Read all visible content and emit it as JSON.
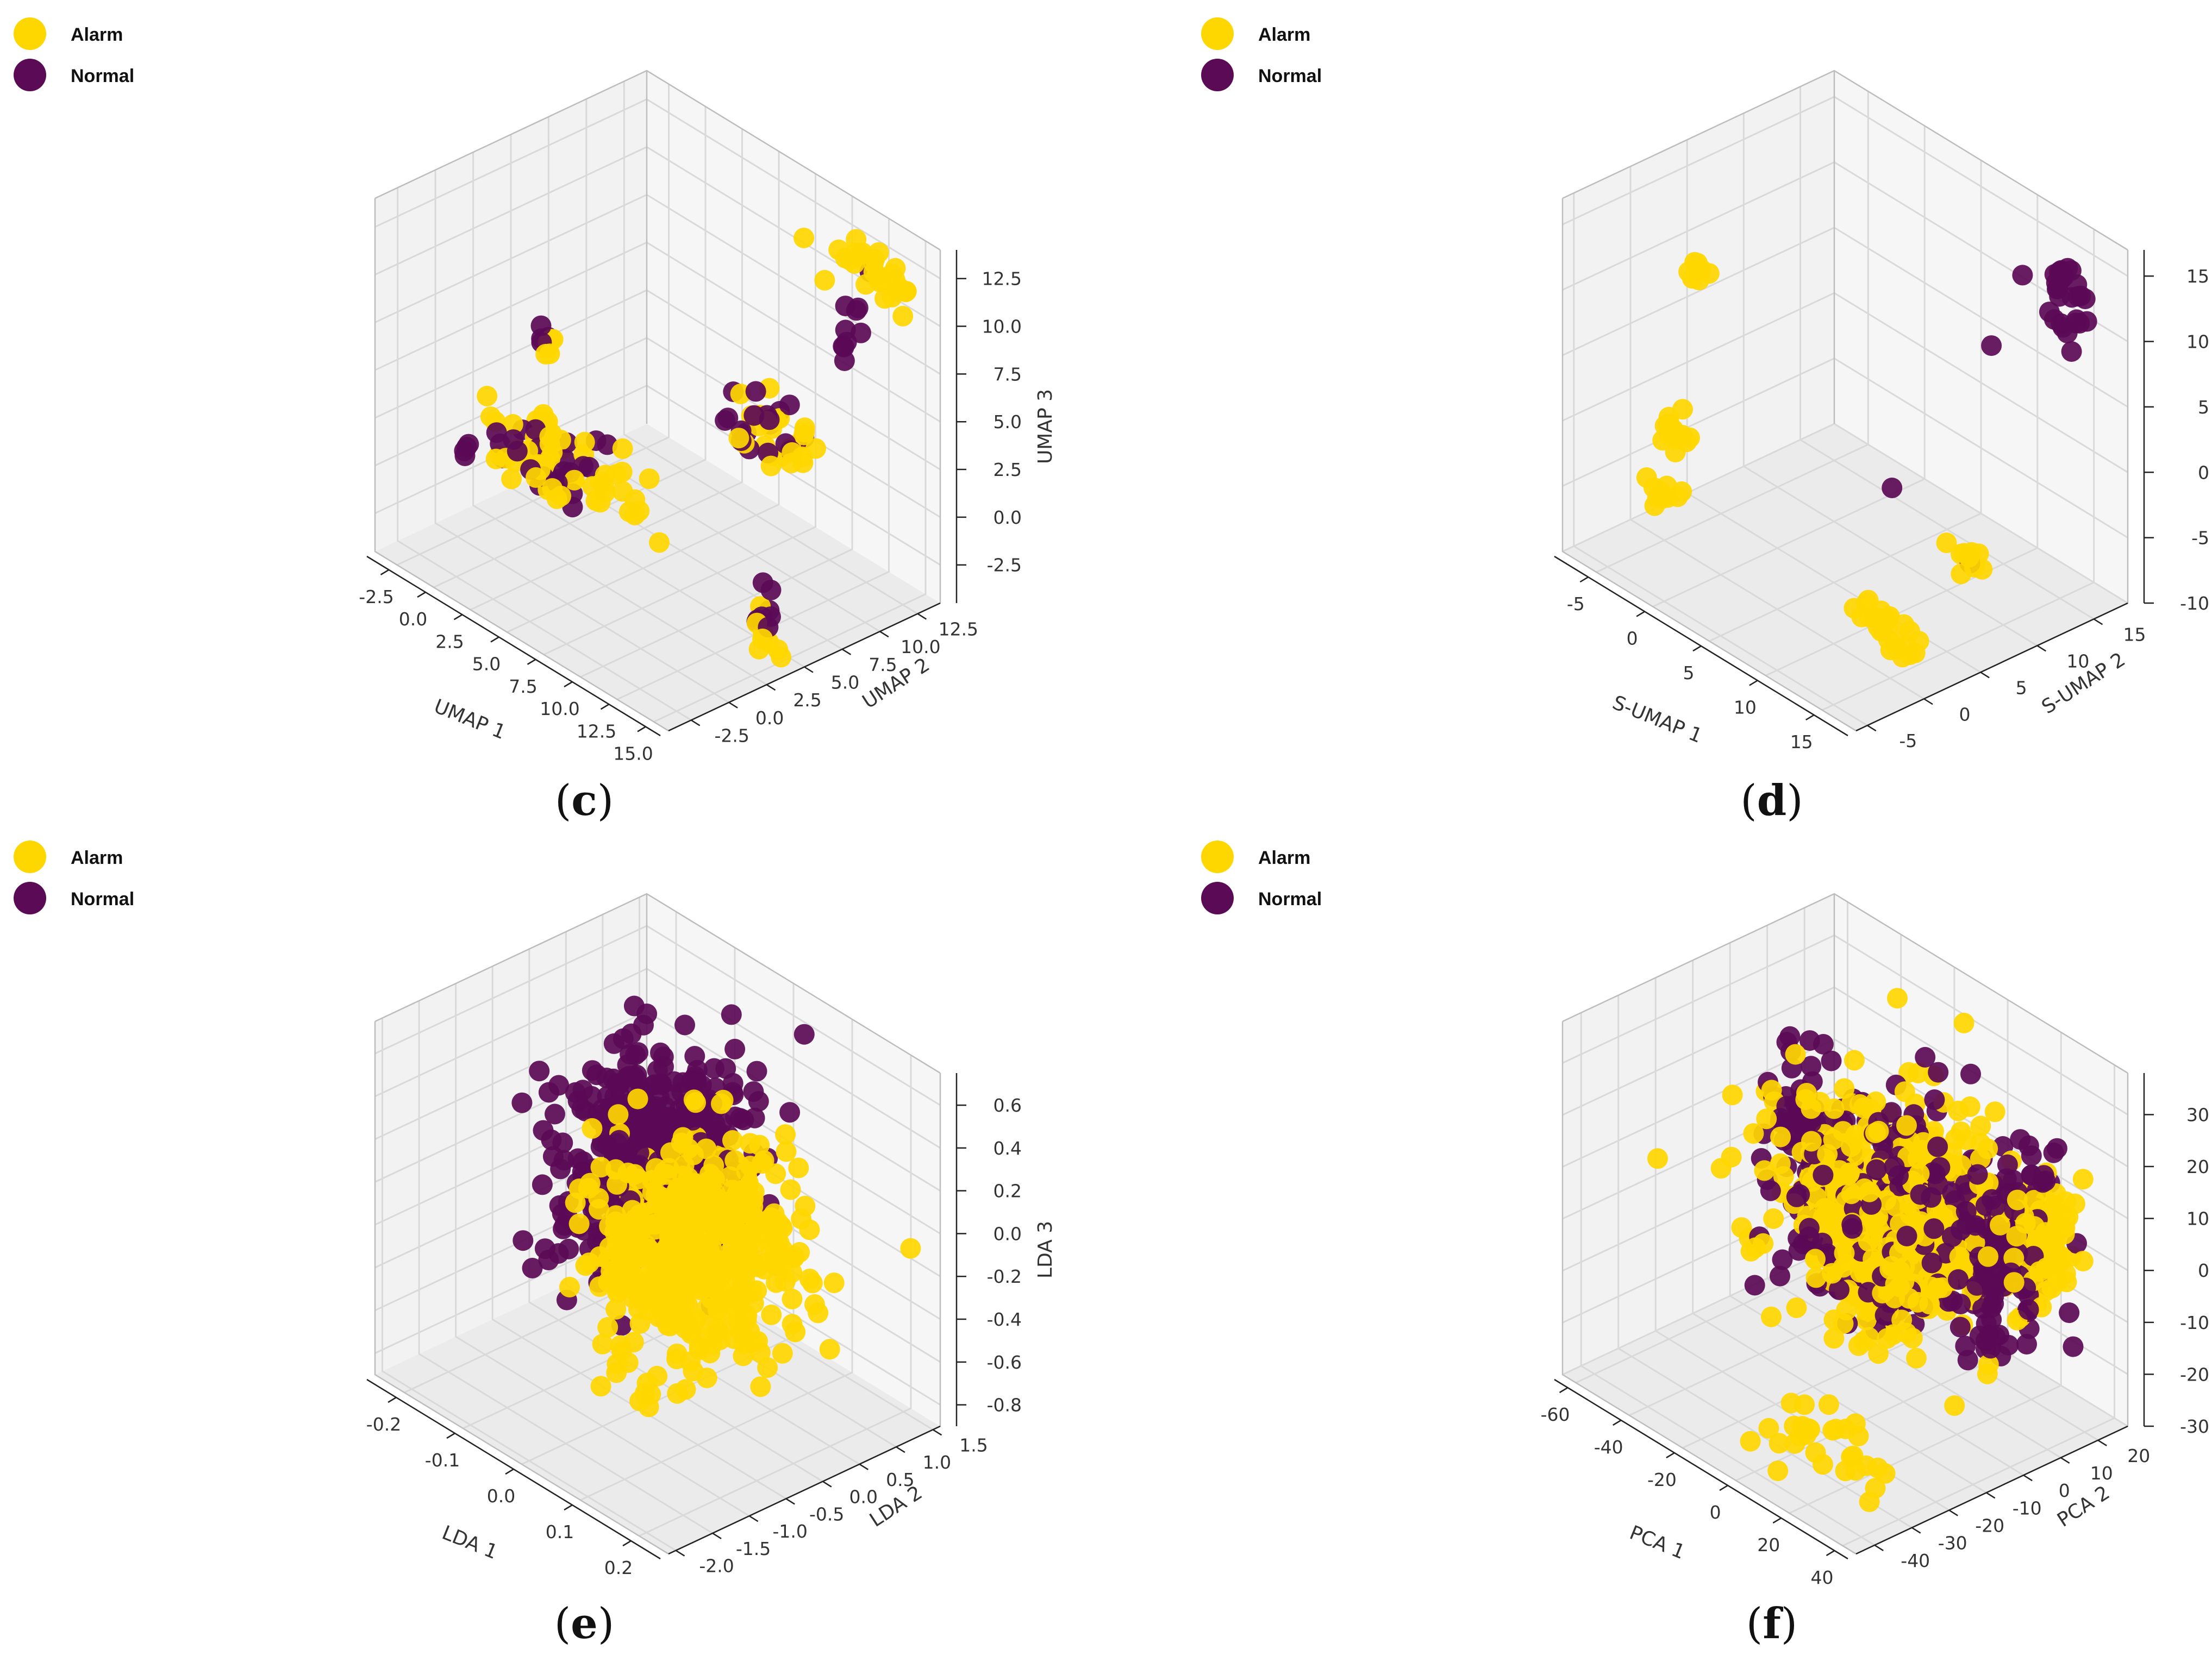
{
  "colors": {
    "alarm": "#FFD700",
    "normal": "#5B0A56",
    "pane": "#F2F2F2",
    "grid": "#D9D9D9",
    "axis_text": "#333333"
  },
  "legend": {
    "alarm_label": "Alarm",
    "normal_label": "Normal"
  },
  "chart_data": [
    {
      "id": "c",
      "type": "scatter3d",
      "caption": "c",
      "xlabel": "UMAP 1",
      "ylabel": "UMAP 2",
      "zlabel": "UMAP 3",
      "xlim": [
        -4,
        16
      ],
      "ylim": [
        -4,
        14
      ],
      "zlim": [
        -4.5,
        14
      ],
      "xticks": [
        -2.5,
        0.0,
        2.5,
        5.0,
        7.5,
        10.0,
        12.5,
        15.0
      ],
      "yticks": [
        -2.5,
        0.0,
        2.5,
        5.0,
        7.5,
        10.0,
        12.5
      ],
      "zticks": [
        -2.5,
        0.0,
        2.5,
        5.0,
        7.5,
        10.0,
        12.5
      ],
      "tick_decimals": 1,
      "series": [
        {
          "name": "Alarm",
          "clusters": [
            {
              "center": [
                0.5,
                3,
                0
              ],
              "spread": [
                1.6,
                1.2,
                0.8
              ],
              "n": 45
            },
            {
              "center": [
                5,
                3,
                1
              ],
              "spread": [
                1.0,
                0.8,
                0.8
              ],
              "n": 15
            },
            {
              "center": [
                9.5,
                9.5,
                3
              ],
              "spread": [
                1.2,
                1.0,
                0.8
              ],
              "n": 25
            },
            {
              "center": [
                12.5,
                12.5,
                12
              ],
              "spread": [
                1.4,
                0.6,
                0.5
              ],
              "n": 30
            },
            {
              "center": [
                15,
                4,
                -3
              ],
              "spread": [
                0.4,
                0.4,
                0.5
              ],
              "n": 8
            },
            {
              "center": [
                -0.5,
                4,
                5
              ],
              "spread": [
                0.3,
                0.3,
                0.4
              ],
              "n": 6
            }
          ]
        },
        {
          "name": "Normal",
          "clusters": [
            {
              "center": [
                0.5,
                3,
                0
              ],
              "spread": [
                1.6,
                1.2,
                0.8
              ],
              "n": 25
            },
            {
              "center": [
                -3.3,
                1.5,
                -1
              ],
              "spread": [
                0.2,
                0.2,
                0.2
              ],
              "n": 4
            },
            {
              "center": [
                9,
                9,
                3
              ],
              "spread": [
                1.1,
                0.9,
                0.8
              ],
              "n": 18
            },
            {
              "center": [
                12,
                12,
                9
              ],
              "spread": [
                0.5,
                0.5,
                1.2
              ],
              "n": 10
            },
            {
              "center": [
                14.5,
                4,
                -2
              ],
              "spread": [
                0.4,
                0.4,
                0.6
              ],
              "n": 8
            },
            {
              "center": [
                -0.5,
                4,
                5.5
              ],
              "spread": [
                0.2,
                0.2,
                0.3
              ],
              "n": 4
            }
          ]
        }
      ]
    },
    {
      "id": "d",
      "type": "scatter3d",
      "caption": "d",
      "xlabel": "S-UMAP 1",
      "ylabel": "S-UMAP 2",
      "zlabel": "S-UMAP 3",
      "xlim": [
        -8,
        18
      ],
      "ylim": [
        -6,
        18
      ],
      "zlim": [
        -10,
        17
      ],
      "xticks": [
        -5,
        0,
        5,
        10,
        15
      ],
      "yticks": [
        -5,
        0,
        5,
        10,
        15
      ],
      "zticks": [
        -10,
        -5,
        0,
        5,
        10,
        15
      ],
      "tick_decimals": 0,
      "series": [
        {
          "name": "Alarm",
          "clusters": [
            {
              "center": [
                -6,
                4,
                8
              ],
              "spread": [
                0.4,
                0.4,
                0.6
              ],
              "n": 8
            },
            {
              "center": [
                -6,
                2,
                -3
              ],
              "spread": [
                0.7,
                0.5,
                0.6
              ],
              "n": 14
            },
            {
              "center": [
                -6,
                1,
                -7
              ],
              "spread": [
                0.6,
                0.5,
                0.3
              ],
              "n": 10
            },
            {
              "center": [
                14,
                8,
                -5
              ],
              "spread": [
                0.6,
                0.5,
                0.6
              ],
              "n": 10
            },
            {
              "center": [
                12,
                2,
                -8
              ],
              "spread": [
                1.5,
                0.6,
                0.5
              ],
              "n": 20
            },
            {
              "center": [
                15,
                2,
                -9
              ],
              "spread": [
                0.4,
                0.4,
                0.3
              ],
              "n": 6
            }
          ]
        },
        {
          "name": "Normal",
          "clusters": [
            {
              "center": [
                13,
                17,
                13
              ],
              "spread": [
                0.6,
                0.6,
                1.0
              ],
              "n": 12
            },
            {
              "center": [
                15,
                16,
                11
              ],
              "spread": [
                0.8,
                0.6,
                1.2
              ],
              "n": 15
            },
            {
              "center": [
                11,
                13,
                8
              ],
              "spread": [
                0.05,
                0.05,
                0.05
              ],
              "n": 1
            },
            {
              "center": [
                8,
                7,
                -2
              ],
              "spread": [
                0.05,
                0.05,
                0.05
              ],
              "n": 1
            },
            {
              "center": [
                14,
                8,
                -5
              ],
              "spread": [
                0.05,
                0.05,
                0.05
              ],
              "n": 1
            }
          ]
        }
      ]
    },
    {
      "id": "e",
      "type": "scatter3d",
      "caption": "e",
      "xlabel": "LDA 1",
      "ylabel": "LDA 2",
      "zlabel": "LDA 3",
      "xlim": [
        -0.25,
        0.25
      ],
      "ylim": [
        -2.1,
        1.6
      ],
      "zlim": [
        -0.9,
        0.75
      ],
      "xticks": [
        -0.2,
        -0.1,
        0.0,
        0.1,
        0.2
      ],
      "yticks": [
        -2.0,
        -1.5,
        -1.0,
        -0.5,
        0.0,
        0.5,
        1.0,
        1.5
      ],
      "zticks": [
        -0.8,
        -0.6,
        -0.4,
        -0.2,
        0.0,
        0.2,
        0.4,
        0.6
      ],
      "tick_decimals": 1,
      "series": [
        {
          "name": "Normal",
          "clusters": [
            {
              "center": [
                -0.06,
                0.2,
                0.1
              ],
              "spread": [
                0.05,
                0.5,
                0.22
              ],
              "n": 420
            },
            {
              "center": [
                -0.12,
                0.0,
                -0.3
              ],
              "spread": [
                0.04,
                0.4,
                0.15
              ],
              "n": 50
            }
          ]
        },
        {
          "name": "Alarm",
          "clusters": [
            {
              "center": [
                0.07,
                -0.3,
                -0.05
              ],
              "spread": [
                0.055,
                0.55,
                0.25
              ],
              "n": 520
            }
          ]
        }
      ]
    },
    {
      "id": "f",
      "type": "scatter3d",
      "caption": "f",
      "xlabel": "PCA 1",
      "ylabel": "PCA 2",
      "zlabel": "PCA 3",
      "xlim": [
        -65,
        45
      ],
      "ylim": [
        -45,
        28
      ],
      "zlim": [
        -30,
        38
      ],
      "xticks": [
        -60,
        -40,
        -20,
        0,
        20,
        40
      ],
      "yticks": [
        -40,
        -30,
        -20,
        -10,
        0,
        10,
        20
      ],
      "zticks": [
        -30,
        -20,
        -10,
        0,
        10,
        20,
        30
      ],
      "tick_decimals": 0,
      "series": [
        {
          "name": "Normal",
          "clusters": [
            {
              "center": [
                -60,
                15,
                0
              ],
              "spread": [
                2.5,
                5,
                8
              ],
              "n": 40
            },
            {
              "center": [
                -5,
                0,
                5
              ],
              "spread": [
                18,
                10,
                10
              ],
              "n": 250
            },
            {
              "center": [
                30,
                5,
                5
              ],
              "spread": [
                7,
                6,
                8
              ],
              "n": 120
            }
          ]
        },
        {
          "name": "Alarm",
          "clusters": [
            {
              "center": [
                -5,
                0,
                5
              ],
              "spread": [
                17,
                10,
                10
              ],
              "n": 520
            },
            {
              "center": [
                40,
                10,
                10
              ],
              "spread": [
                3,
                5,
                6
              ],
              "n": 60
            },
            {
              "center": [
                15,
                -30,
                -25
              ],
              "spread": [
                12,
                5,
                4
              ],
              "n": 30
            }
          ]
        }
      ]
    }
  ]
}
